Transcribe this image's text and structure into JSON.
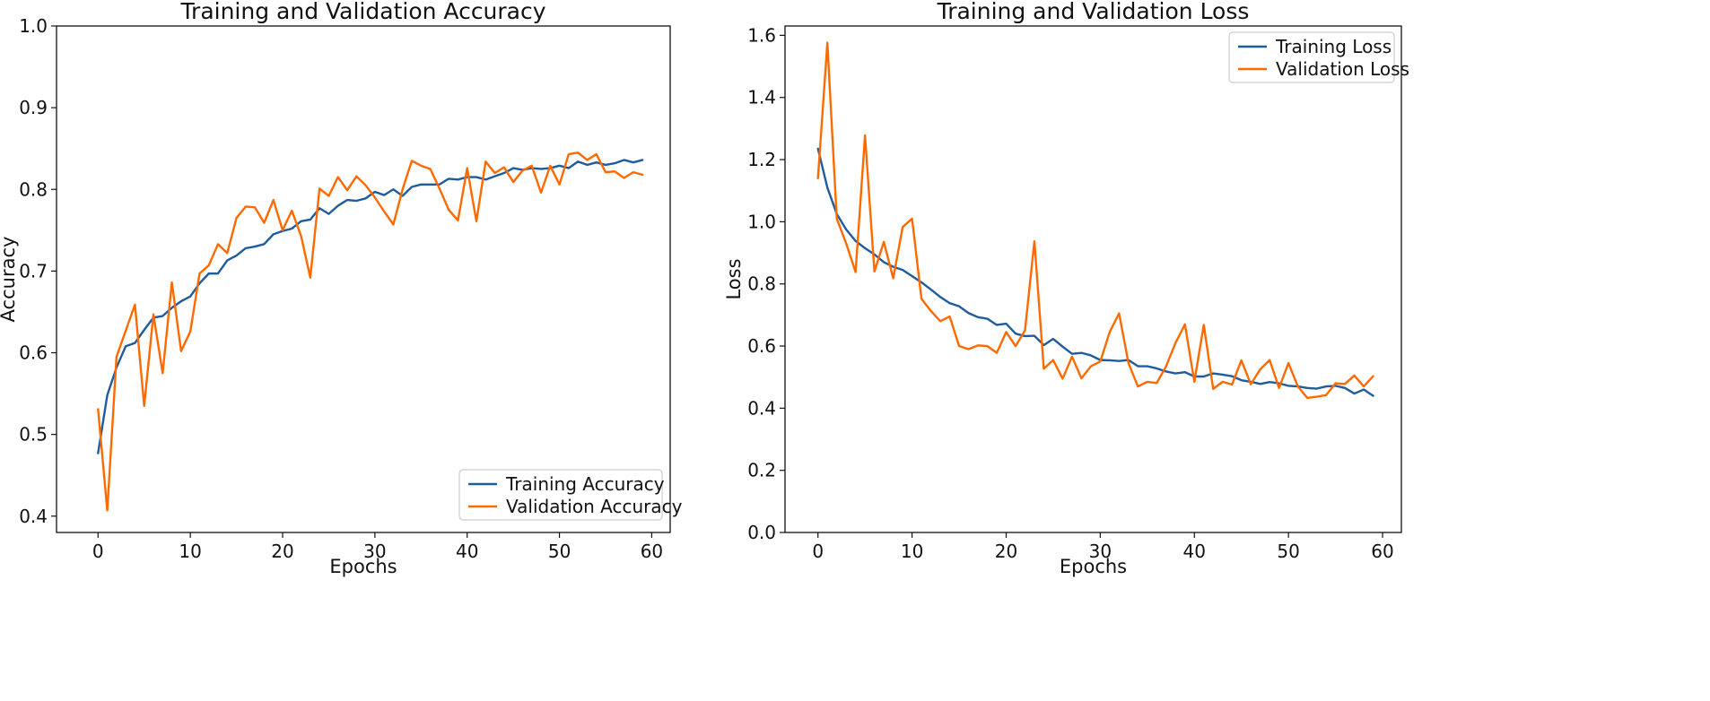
{
  "colors": {
    "training": "#1f5c9e",
    "validation": "#ff6a00",
    "axis": "#111111",
    "legend_border": "#cccccc"
  },
  "chart_data": [
    {
      "type": "line",
      "title": "Training and Validation Accuracy",
      "xlabel": "Epochs",
      "ylabel": "Accuracy",
      "xlim": [
        -4.5,
        62
      ],
      "ylim": [
        0.38,
        1.0
      ],
      "xticks": [
        0,
        10,
        20,
        30,
        40,
        50,
        60
      ],
      "xtick_labels": [
        "0",
        "10",
        "20",
        "30",
        "40",
        "50",
        "60"
      ],
      "yticks": [
        0.4,
        0.5,
        0.6,
        0.7,
        0.8,
        0.9,
        1.0
      ],
      "ytick_labels": [
        "0.4",
        "0.5",
        "0.6",
        "0.7",
        "0.8",
        "0.9",
        "1.0"
      ],
      "grid": false,
      "legend_position": "lower-right",
      "series": [
        {
          "name": "Training Accuracy",
          "color_key": "training",
          "values": [
            0.477,
            0.548,
            0.582,
            0.608,
            0.612,
            0.628,
            0.643,
            0.645,
            0.655,
            0.663,
            0.669,
            0.685,
            0.697,
            0.697,
            0.713,
            0.719,
            0.728,
            0.73,
            0.733,
            0.745,
            0.749,
            0.752,
            0.761,
            0.763,
            0.777,
            0.77,
            0.78,
            0.787,
            0.786,
            0.789,
            0.797,
            0.793,
            0.8,
            0.792,
            0.803,
            0.806,
            0.806,
            0.806,
            0.813,
            0.812,
            0.815,
            0.815,
            0.812,
            0.816,
            0.82,
            0.826,
            0.824,
            0.826,
            0.825,
            0.826,
            0.829,
            0.826,
            0.834,
            0.83,
            0.833,
            0.83,
            0.832,
            0.836,
            0.833,
            0.836
          ]
        },
        {
          "name": "Validation Accuracy",
          "color_key": "validation",
          "values": [
            0.531,
            0.407,
            0.595,
            0.627,
            0.659,
            0.535,
            0.647,
            0.575,
            0.686,
            0.602,
            0.626,
            0.697,
            0.707,
            0.733,
            0.722,
            0.765,
            0.779,
            0.778,
            0.759,
            0.787,
            0.75,
            0.774,
            0.743,
            0.692,
            0.801,
            0.792,
            0.815,
            0.799,
            0.816,
            0.805,
            0.79,
            0.773,
            0.757,
            0.8,
            0.835,
            0.829,
            0.825,
            0.801,
            0.775,
            0.762,
            0.826,
            0.761,
            0.834,
            0.82,
            0.827,
            0.809,
            0.823,
            0.829,
            0.796,
            0.829,
            0.806,
            0.843,
            0.845,
            0.836,
            0.843,
            0.821,
            0.822,
            0.814,
            0.821,
            0.818
          ]
        }
      ]
    },
    {
      "type": "line",
      "title": "Training and Validation Loss",
      "xlabel": "Epochs",
      "ylabel": "Loss",
      "xlim": [
        -3.5,
        62
      ],
      "ylim": [
        0.0,
        1.63
      ],
      "xticks": [
        0,
        10,
        20,
        30,
        40,
        50,
        60
      ],
      "xtick_labels": [
        "0",
        "10",
        "20",
        "30",
        "40",
        "50",
        "60"
      ],
      "yticks": [
        0.0,
        0.2,
        0.4,
        0.6,
        0.8,
        1.0,
        1.2,
        1.4,
        1.6
      ],
      "ytick_labels": [
        "0.0",
        "0.2",
        "0.4",
        "0.6",
        "0.8",
        "1.0",
        "1.2",
        "1.4",
        "1.6"
      ],
      "grid": false,
      "legend_position": "upper-right",
      "series": [
        {
          "name": "Training Loss",
          "color_key": "training",
          "values": [
            1.235,
            1.11,
            1.025,
            0.975,
            0.938,
            0.915,
            0.895,
            0.87,
            0.855,
            0.845,
            0.825,
            0.805,
            0.782,
            0.758,
            0.738,
            0.728,
            0.706,
            0.693,
            0.688,
            0.668,
            0.672,
            0.64,
            0.632,
            0.633,
            0.603,
            0.623,
            0.598,
            0.575,
            0.578,
            0.57,
            0.555,
            0.554,
            0.552,
            0.555,
            0.535,
            0.535,
            0.528,
            0.518,
            0.512,
            0.516,
            0.502,
            0.502,
            0.512,
            0.508,
            0.503,
            0.49,
            0.485,
            0.478,
            0.484,
            0.48,
            0.472,
            0.47,
            0.465,
            0.463,
            0.47,
            0.472,
            0.465,
            0.447,
            0.46,
            0.44
          ]
        },
        {
          "name": "Validation Loss",
          "color_key": "validation",
          "values": [
            1.14,
            1.576,
            1.01,
            0.93,
            0.838,
            1.278,
            0.84,
            0.935,
            0.818,
            0.983,
            1.01,
            0.752,
            0.713,
            0.68,
            0.695,
            0.6,
            0.59,
            0.602,
            0.6,
            0.578,
            0.645,
            0.6,
            0.65,
            0.937,
            0.527,
            0.555,
            0.495,
            0.566,
            0.496,
            0.535,
            0.55,
            0.645,
            0.705,
            0.545,
            0.47,
            0.485,
            0.481,
            0.535,
            0.61,
            0.67,
            0.485,
            0.668,
            0.462,
            0.485,
            0.476,
            0.554,
            0.477,
            0.525,
            0.555,
            0.465,
            0.545,
            0.47,
            0.433,
            0.437,
            0.442,
            0.48,
            0.478,
            0.505,
            0.47,
            0.503
          ]
        }
      ]
    }
  ]
}
